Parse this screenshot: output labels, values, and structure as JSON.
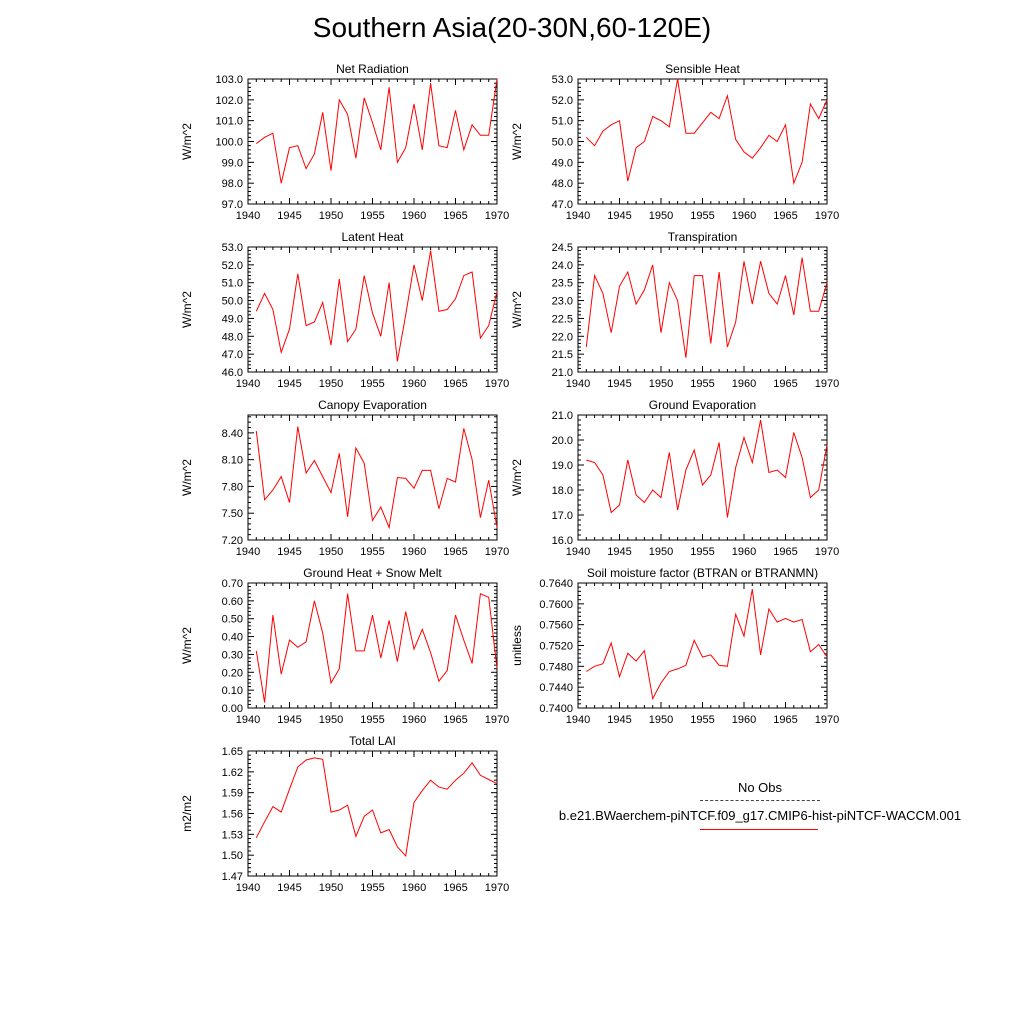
{
  "title": "Southern Asia(20-30N,60-120E)",
  "legend": {
    "obs_label": "No Obs",
    "run_label": "b.e21.BWaerchem-piNTCF.f09_g17.CMIP6-hist-piNTCF-WACCM.001",
    "run_color": "#ff0000"
  },
  "x_years": [
    1941,
    1942,
    1943,
    1944,
    1945,
    1946,
    1947,
    1948,
    1949,
    1950,
    1951,
    1952,
    1953,
    1954,
    1955,
    1956,
    1957,
    1958,
    1959,
    1960,
    1961,
    1962,
    1963,
    1964,
    1965,
    1966,
    1967,
    1968,
    1969,
    1970
  ],
  "chart_data": [
    {
      "type": "line",
      "title": "Net Radiation",
      "ylabel": "W/m^2",
      "xlim": [
        1940,
        1970
      ],
      "ylim": [
        97.0,
        103.0
      ],
      "xticks": [
        "1940",
        "1945",
        "1950",
        "1955",
        "1960",
        "1965",
        "1970"
      ],
      "yticks": [
        "97.0",
        "98.0",
        "99.0",
        "100.0",
        "101.0",
        "102.0",
        "103.0"
      ],
      "values": [
        99.9,
        100.2,
        100.4,
        98.0,
        99.7,
        99.8,
        98.7,
        99.4,
        101.4,
        98.6,
        102.0,
        101.3,
        99.2,
        102.1,
        100.9,
        99.6,
        102.6,
        99.0,
        99.7,
        101.8,
        99.6,
        102.8,
        99.8,
        99.7,
        101.5,
        99.6,
        100.8,
        100.3,
        100.3,
        103.0
      ],
      "color": "#ff0000"
    },
    {
      "type": "line",
      "title": "Sensible Heat",
      "ylabel": "W/m^2",
      "xlim": [
        1940,
        1970
      ],
      "ylim": [
        47.0,
        53.0
      ],
      "xticks": [
        "1940",
        "1945",
        "1950",
        "1955",
        "1960",
        "1965",
        "1970"
      ],
      "yticks": [
        "47.0",
        "48.0",
        "49.0",
        "50.0",
        "51.0",
        "52.0",
        "53.0"
      ],
      "values": [
        50.2,
        49.8,
        50.5,
        50.8,
        51.0,
        48.1,
        49.7,
        50.0,
        51.2,
        51.0,
        50.7,
        53.0,
        50.4,
        50.4,
        50.9,
        51.4,
        51.1,
        52.2,
        50.1,
        49.5,
        49.2,
        49.7,
        50.3,
        50.0,
        50.8,
        48.0,
        49.0,
        51.8,
        51.1,
        52.0
      ],
      "color": "#ff0000"
    },
    {
      "type": "line",
      "title": "Latent Heat",
      "ylabel": "W/m^2",
      "xlim": [
        1940,
        1970
      ],
      "ylim": [
        46.0,
        53.0
      ],
      "xticks": [
        "1940",
        "1945",
        "1950",
        "1955",
        "1960",
        "1965",
        "1970"
      ],
      "yticks": [
        "46.0",
        "47.0",
        "48.0",
        "49.0",
        "50.0",
        "51.0",
        "52.0",
        "53.0"
      ],
      "values": [
        49.4,
        50.4,
        49.5,
        47.1,
        48.4,
        51.5,
        48.6,
        48.8,
        49.9,
        47.5,
        51.2,
        47.7,
        48.4,
        51.4,
        49.3,
        48.0,
        51.0,
        46.6,
        49.2,
        52.0,
        50.0,
        52.8,
        49.4,
        49.5,
        50.1,
        51.4,
        51.6,
        47.9,
        48.6,
        50.5
      ],
      "color": "#ff0000"
    },
    {
      "type": "line",
      "title": "Transpiration",
      "ylabel": "W/m^2",
      "xlim": [
        1940,
        1970
      ],
      "ylim": [
        21.0,
        24.5
      ],
      "xticks": [
        "1940",
        "1945",
        "1950",
        "1955",
        "1960",
        "1965",
        "1970"
      ],
      "yticks": [
        "21.0",
        "21.5",
        "22.0",
        "22.5",
        "23.0",
        "23.5",
        "24.0",
        "24.5"
      ],
      "values": [
        21.7,
        23.7,
        23.2,
        22.1,
        23.4,
        23.8,
        22.9,
        23.3,
        24.0,
        22.1,
        23.5,
        23.0,
        21.4,
        23.7,
        23.7,
        21.8,
        23.8,
        21.7,
        22.4,
        24.1,
        22.9,
        24.1,
        23.2,
        22.9,
        23.7,
        22.6,
        24.2,
        22.7,
        22.7,
        23.5
      ],
      "color": "#ff0000"
    },
    {
      "type": "line",
      "title": "Canopy Evaporation",
      "ylabel": "W/m^2",
      "xlim": [
        1940,
        1970
      ],
      "ylim": [
        7.2,
        8.6
      ],
      "xticks": [
        "1940",
        "1945",
        "1950",
        "1955",
        "1960",
        "1965",
        "1970"
      ],
      "yticks": [
        "7.20",
        "7.50",
        "7.80",
        "8.10",
        "8.40"
      ],
      "values": [
        8.42,
        7.65,
        7.76,
        7.91,
        7.62,
        8.47,
        7.95,
        8.09,
        7.91,
        7.73,
        8.17,
        7.46,
        8.23,
        8.06,
        7.42,
        7.57,
        7.34,
        7.9,
        7.89,
        7.78,
        7.98,
        7.98,
        7.55,
        7.89,
        7.85,
        8.45,
        8.1,
        7.45,
        7.87,
        7.34
      ],
      "color": "#ff0000"
    },
    {
      "type": "line",
      "title": "Ground Evaporation",
      "ylabel": "W/m^2",
      "xlim": [
        1940,
        1970
      ],
      "ylim": [
        16.0,
        21.0
      ],
      "xticks": [
        "1940",
        "1945",
        "1950",
        "1955",
        "1960",
        "1965",
        "1970"
      ],
      "yticks": [
        "16.0",
        "17.0",
        "18.0",
        "19.0",
        "20.0",
        "21.0"
      ],
      "values": [
        19.2,
        19.1,
        18.6,
        17.1,
        17.4,
        19.2,
        17.8,
        17.5,
        18.0,
        17.7,
        19.5,
        17.2,
        18.8,
        19.6,
        18.2,
        18.6,
        19.9,
        16.9,
        18.9,
        20.1,
        19.1,
        20.8,
        18.7,
        18.8,
        18.5,
        20.3,
        19.3,
        17.7,
        18.0,
        19.8
      ],
      "color": "#ff0000"
    },
    {
      "type": "line",
      "title": "Ground Heat + Snow Melt",
      "ylabel": "W/m^2",
      "xlim": [
        1940,
        1970
      ],
      "ylim": [
        0.0,
        0.7
      ],
      "xticks": [
        "1940",
        "1945",
        "1950",
        "1955",
        "1960",
        "1965",
        "1970"
      ],
      "yticks": [
        "0.00",
        "0.10",
        "0.20",
        "0.30",
        "0.40",
        "0.50",
        "0.60",
        "0.70"
      ],
      "values": [
        0.32,
        0.03,
        0.52,
        0.19,
        0.38,
        0.34,
        0.37,
        0.6,
        0.42,
        0.14,
        0.22,
        0.64,
        0.32,
        0.32,
        0.52,
        0.28,
        0.49,
        0.26,
        0.54,
        0.33,
        0.44,
        0.31,
        0.15,
        0.21,
        0.52,
        0.38,
        0.25,
        0.64,
        0.62,
        0.22
      ],
      "color": "#ff0000"
    },
    {
      "type": "line",
      "title": "Soil moisture factor (BTRAN or BTRANMN)",
      "ylabel": "unitless",
      "xlim": [
        1940,
        1970
      ],
      "ylim": [
        0.74,
        0.764
      ],
      "xticks": [
        "1940",
        "1945",
        "1950",
        "1955",
        "1960",
        "1965",
        "1970"
      ],
      "yticks": [
        "0.7400",
        "0.7440",
        "0.7480",
        "0.7520",
        "0.7560",
        "0.7600",
        "0.7640"
      ],
      "values": [
        0.747,
        0.748,
        0.7485,
        0.7525,
        0.746,
        0.7505,
        0.749,
        0.751,
        0.7418,
        0.7448,
        0.747,
        0.7475,
        0.7482,
        0.753,
        0.7498,
        0.7502,
        0.7482,
        0.748,
        0.758,
        0.7538,
        0.7628,
        0.7502,
        0.759,
        0.7565,
        0.7572,
        0.7565,
        0.757,
        0.7508,
        0.7522,
        0.7498
      ],
      "color": "#ff0000"
    },
    {
      "type": "line",
      "title": "Total LAI",
      "ylabel": "m2/m2",
      "xlim": [
        1940,
        1970
      ],
      "ylim": [
        1.47,
        1.65
      ],
      "xticks": [
        "1940",
        "1945",
        "1950",
        "1955",
        "1960",
        "1965",
        "1970"
      ],
      "yticks": [
        "1.47",
        "1.50",
        "1.53",
        "1.56",
        "1.59",
        "1.62",
        "1.65"
      ],
      "values": [
        1.525,
        1.548,
        1.57,
        1.562,
        1.595,
        1.627,
        1.637,
        1.64,
        1.638,
        1.562,
        1.565,
        1.572,
        1.527,
        1.556,
        1.565,
        1.532,
        1.537,
        1.512,
        1.499,
        1.576,
        1.593,
        1.608,
        1.598,
        1.595,
        1.608,
        1.618,
        1.633,
        1.615,
        1.609,
        1.603
      ],
      "color": "#ff0000"
    }
  ]
}
